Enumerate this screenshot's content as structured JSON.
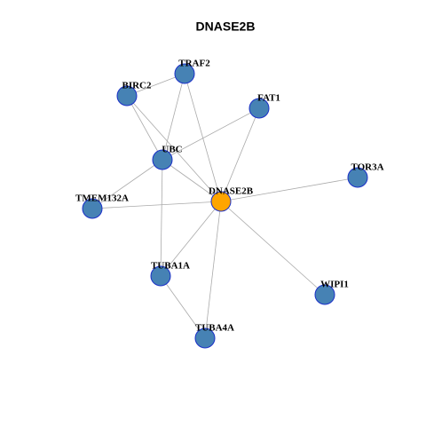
{
  "title": "DNASE2B",
  "nodes": [
    {
      "label": "DNASE2B"
    },
    {
      "label": "TRAF2"
    },
    {
      "label": "BIRC2"
    },
    {
      "label": "FAT1"
    },
    {
      "label": "UBC"
    },
    {
      "label": "TOR3A"
    },
    {
      "label": "TMEM132A"
    },
    {
      "label": "TUBA1A"
    },
    {
      "label": "WIPI1"
    },
    {
      "label": "TUBA4A"
    }
  ]
}
